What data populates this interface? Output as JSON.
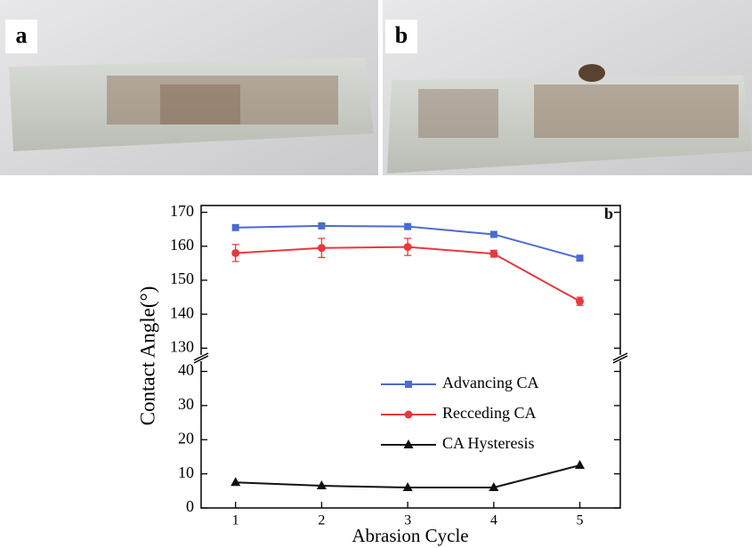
{
  "panels": [
    "a",
    "b"
  ],
  "chart_data": {
    "type": "line",
    "panel_label": "b",
    "x_label": "Abrasion Cycle",
    "y_label": "Contact Angle(°)",
    "x": [
      1,
      2,
      3,
      4,
      5
    ],
    "xlim": [
      0.6,
      5.47
    ],
    "xticks": [
      1,
      2,
      3,
      4,
      5
    ],
    "ylim": [
      0,
      172
    ],
    "ybreak": [
      43,
      128
    ],
    "yticks": [
      0,
      10,
      20,
      30,
      40,
      130,
      140,
      150,
      160,
      170
    ],
    "series": [
      {
        "name": "Advancing CA",
        "color": "#4a6bd0",
        "marker": "square",
        "values": [
          165.5,
          166,
          165.8,
          163.5,
          156.5
        ]
      },
      {
        "name": "Recceding CA",
        "color": "#e8393c",
        "marker": "circle",
        "values": [
          158,
          159.5,
          159.8,
          157.8,
          143.8
        ],
        "errors": [
          2.5,
          2.8,
          2.5,
          1,
          1.2
        ]
      },
      {
        "name": "CA Hysteresis",
        "color": "#111111",
        "marker": "triangle",
        "values": [
          7.5,
          6.5,
          6,
          6,
          12.5
        ]
      }
    ]
  }
}
